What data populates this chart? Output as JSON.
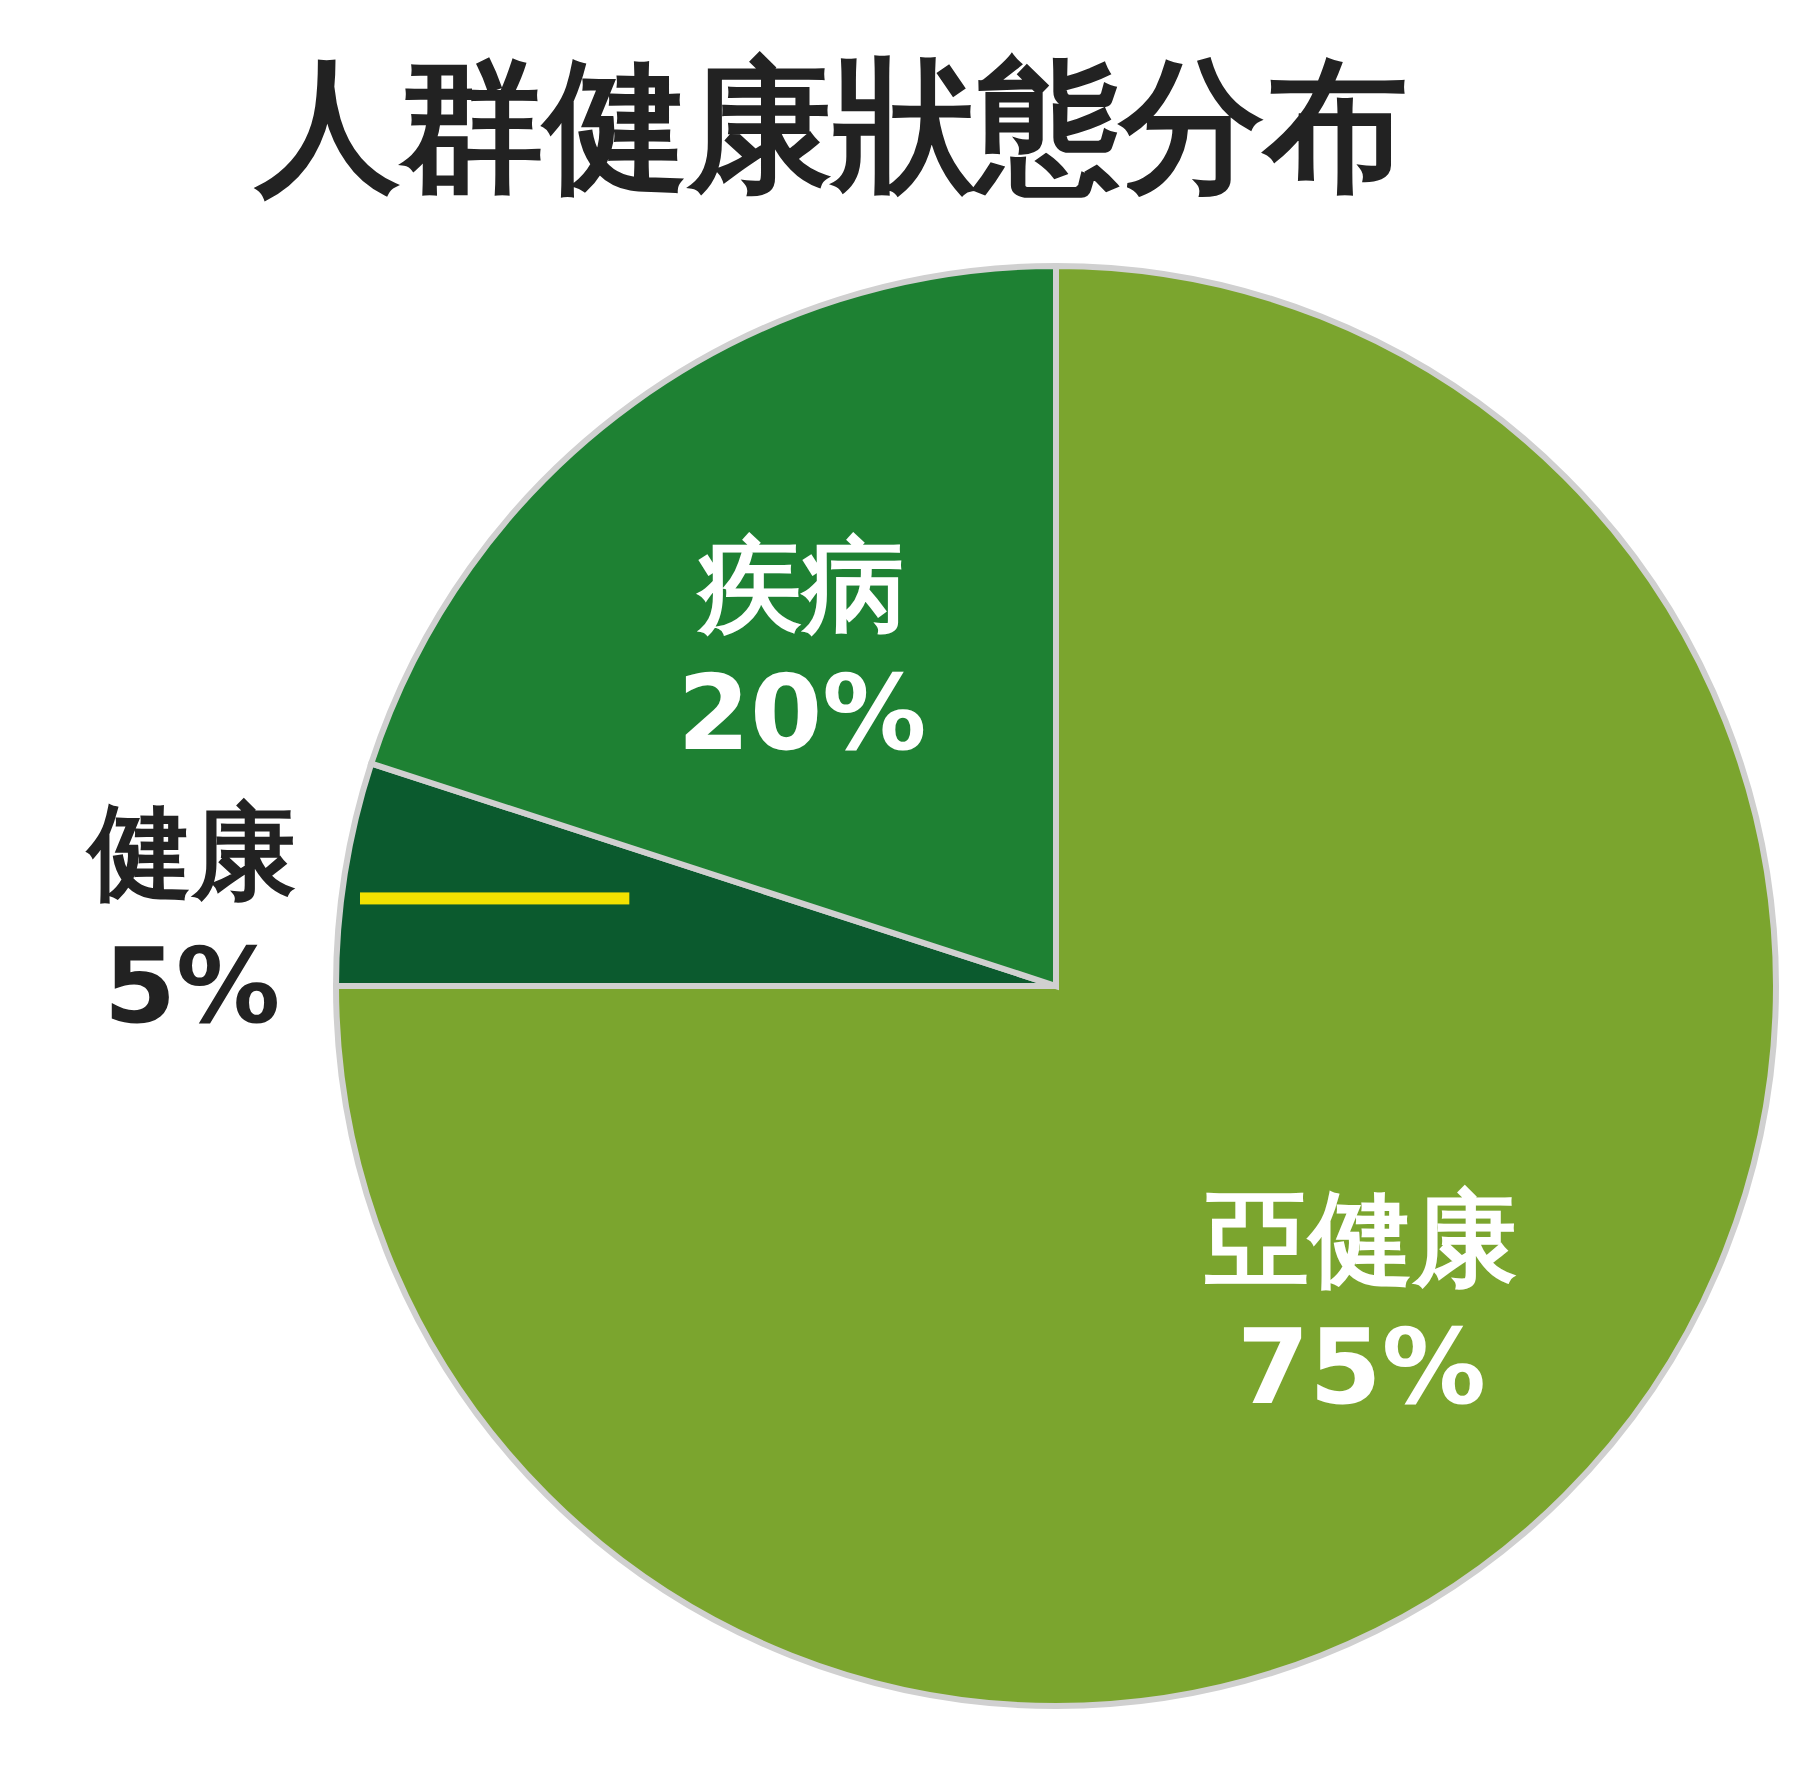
{
  "chart_data": {
    "type": "pie",
    "title": "人群健康狀態分布",
    "categories": [
      "亞健康",
      "健康",
      "疾病"
    ],
    "values": [
      75,
      5,
      20
    ],
    "colors": [
      "#7ba52e",
      "#0b5a2e",
      "#1e8133"
    ],
    "value_labels": [
      "75%",
      "5%",
      "20%"
    ]
  }
}
